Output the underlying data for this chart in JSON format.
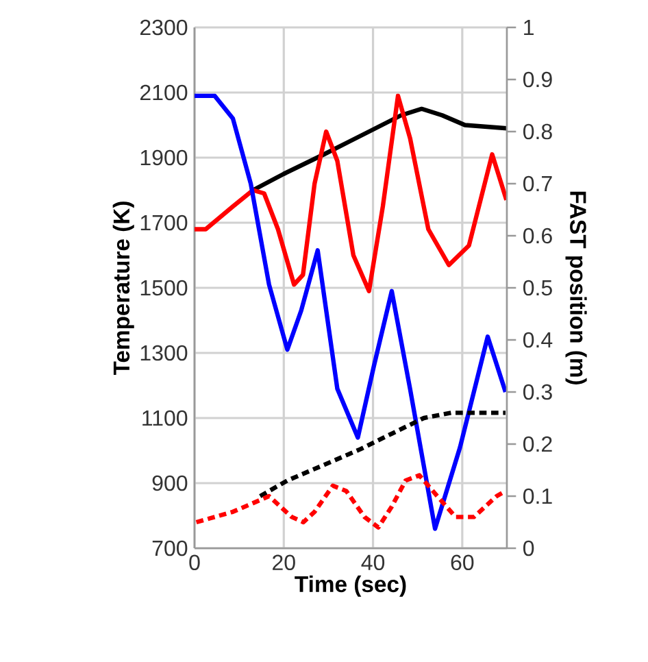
{
  "chart_data": {
    "type": "line",
    "xlabel": "Time (sec)",
    "ylabel": "Temperature (K)",
    "y2label": "FAST position (m)",
    "xlim": [
      0,
      70
    ],
    "xticks": [
      0,
      20,
      40,
      60
    ],
    "ylim": [
      700,
      2300
    ],
    "yticks": [
      700,
      900,
      1100,
      1300,
      1500,
      1700,
      1900,
      2100,
      2300
    ],
    "y2lim": [
      0,
      1
    ],
    "y2ticks": [
      0,
      0.1,
      0.2,
      0.3,
      0.4,
      0.5,
      0.6,
      0.7,
      0.8,
      0.9,
      1
    ],
    "grid": true,
    "series": [
      {
        "color": "#000000",
        "line_style": "solid",
        "x": [
          13.1,
          20,
          29,
          39.1,
          46.3,
          50.9,
          55.5,
          60.6,
          70
        ],
        "values": [
          1800,
          1850,
          1910,
          1980,
          2030,
          2050,
          2030,
          2000,
          1990
        ]
      },
      {
        "color": "#ff0000",
        "line_style": "solid",
        "x": [
          0,
          2.5,
          8.6,
          13.1,
          15.6,
          18.7,
          22.3,
          24.3,
          26.9,
          29.5,
          32,
          35.6,
          39.1,
          42.2,
          45.6,
          48.3,
          52.4,
          57,
          61.5,
          66.7,
          69.9
        ],
        "values": [
          1680,
          1680,
          1750,
          1800,
          1790,
          1680,
          1510,
          1540,
          1820,
          1980,
          1890,
          1600,
          1490,
          1750,
          2090,
          1960,
          1680,
          1570,
          1630,
          1910,
          1770
        ]
      },
      {
        "color": "#0000ff",
        "line_style": "solid",
        "x": [
          0,
          4.5,
          8.6,
          12.6,
          16.7,
          20.8,
          23.9,
          27.6,
          32,
          36.6,
          40.2,
          44.2,
          48.3,
          53.9,
          59.5,
          65.7,
          69.7
        ],
        "values": [
          2090,
          2090,
          2020,
          1820,
          1510,
          1310,
          1430,
          1615,
          1190,
          1040,
          1260,
          1490,
          1190,
          760,
          1010,
          1350,
          1180
        ]
      },
      {
        "color": "#000000",
        "line_style": "dashed",
        "axis": "y2",
        "x": [
          14.7,
          20.8,
          29,
          37.1,
          44.2,
          51.4,
          57.5,
          69.7
        ],
        "values": [
          0.1,
          0.13,
          0.16,
          0.19,
          0.22,
          0.25,
          0.26,
          0.26
        ]
      },
      {
        "color": "#ff0000",
        "line_style": "dashed",
        "axis": "y2",
        "x": [
          0.4,
          8.6,
          16.7,
          21.8,
          24.4,
          26.9,
          31,
          34,
          38.1,
          41.2,
          44.2,
          47.3,
          50.4,
          54.4,
          58.5,
          62.6,
          67.7,
          69.7
        ],
        "values": [
          0.05,
          0.07,
          0.1,
          0.06,
          0.05,
          0.07,
          0.12,
          0.11,
          0.06,
          0.04,
          0.08,
          0.13,
          0.14,
          0.1,
          0.06,
          0.06,
          0.1,
          0.11
        ]
      }
    ]
  }
}
